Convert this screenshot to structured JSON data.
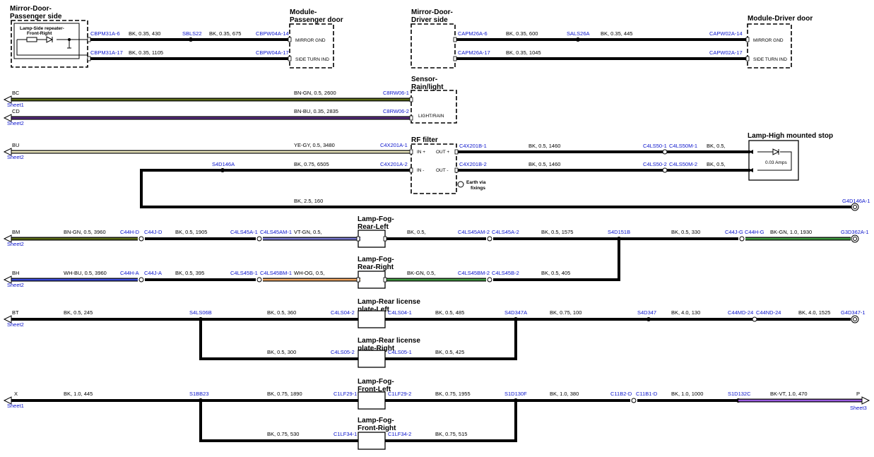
{
  "sheets": {
    "s1": "Sheet1",
    "s2": "Sheet2",
    "s3": "Sheet3"
  },
  "off_page": {
    "bc": "BC",
    "cd": "CD",
    "bu": "BU",
    "bm": "BM",
    "bh": "BH",
    "bt": "BT",
    "x": "X",
    "p": "P"
  },
  "components": {
    "mirror_pass": {
      "line1": "Mirror-Door-",
      "line2": "Passenger side"
    },
    "side_repeater": {
      "line1": "Lamp-Side repeater-",
      "line2": "Front-Right"
    },
    "module_pass": {
      "line1": "Module-",
      "line2": "Passenger door",
      "pin1": "MIRROR GND",
      "pin2": "SIDE TURN IND"
    },
    "mirror_drv": {
      "line1": "Mirror-Door-",
      "line2": "Driver side"
    },
    "module_drv": {
      "title": "Module-Driver door",
      "pin1": "MIRROR GND",
      "pin2": "SIDE TURN IND"
    },
    "sensor_rain": {
      "line1": "Sensor-",
      "line2": "Rain/light",
      "pin": "LIGHT/RAIN"
    },
    "rf_filter": {
      "title": "RF filter",
      "in_plus": "IN +",
      "out_plus": "OUT +",
      "in_minus": "IN -",
      "out_minus": "OUT -",
      "earth1": "Earth via",
      "earth2": "fixings"
    },
    "hms_lamp": {
      "title": "Lamp-High mounted stop",
      "amps": "0.03 Amps"
    },
    "fog_rl": {
      "line1": "Lamp-Fog-",
      "line2": "Rear-Left"
    },
    "fog_rr": {
      "line1": "Lamp-Fog-",
      "line2": "Rear-Right"
    },
    "plate_l": {
      "line1": "Lamp-Rear license",
      "line2": "plate-Left"
    },
    "plate_r": {
      "line1": "Lamp-Rear license",
      "line2": "plate-Right"
    },
    "fog_fl": {
      "line1": "Lamp-Fog-",
      "line2": "Front-Left"
    },
    "fog_fr": {
      "line1": "Lamp-Fog-",
      "line2": "Front-Right"
    }
  },
  "connectors": {
    "cbpm31a_6": "CBPM31A-6",
    "sbls22": "SBLS22",
    "cbpw04a_14": "CBPW04A-14",
    "cbpm31a_17": "CBPM31A-17",
    "cbpw04a_17": "CBPW04A-17",
    "capm26a_6": "CAPM26A-6",
    "sals26a": "SALS26A",
    "capw02a_14": "CAPW02A-14",
    "capm26a_17": "CAPM26A-17",
    "capw02a_17": "CAPW02A-17",
    "c8rw06_1": "C8RW06-1",
    "c8rw06_2": "C8RW06-2",
    "c4x201a_1": "C4X201A-1",
    "c4x201a_2": "C4X201A-2",
    "s4d146a": "S4D146A",
    "c4x201b_1": "C4X201B-1",
    "c4ls50_1": "C4LS50-1",
    "c4ls50m_1": "C4LS50M-1",
    "c4x201b_2": "C4X201B-2",
    "c4ls50_2": "C4LS50-2",
    "c4ls50m_2": "C4LS50M-2",
    "g4d146a_1": "G4D146A-1",
    "c44h_d": "C44H-D",
    "c44j_d": "C44J-D",
    "c4ls45a_1": "C4LS45A-1",
    "c4ls45am_1": "C4LS45AM-1",
    "c4ls45am_2": "C4LS45AM-2",
    "c4ls45a_2": "C4LS45A-2",
    "s4d151b": "S4D151B",
    "c44j_g": "C44J-G",
    "c44h_g": "C44H-G",
    "g3d362a_1": "G3D362A-1",
    "c44h_a": "C44H-A",
    "c44j_a": "C44J-A",
    "c4ls45b_1": "C4LS45B-1",
    "c4ls45bm_1": "C4LS45BM-1",
    "c4ls45bm_2": "C4LS45BM-2",
    "c4ls45b_2": "C4LS45B-2",
    "s4ls06b": "S4LS06B",
    "c4ls04_2": "C4LS04-2",
    "c4ls04_1": "C4LS04-1",
    "s4d347a": "S4D347A",
    "s4d347": "S4D347",
    "c44md_24": "C44MD-24",
    "c44nd_24": "C44ND-24",
    "g4d347_1": "G4D347-1",
    "c4ls05_2": "C4LS05-2",
    "c4ls05_1": "C4LS05-1",
    "s1bb23": "S1BB23",
    "c1lf29_1": "C1LF29-1",
    "c1lf29_2": "C1LF29-2",
    "s1d130f": "S1D130F",
    "c11b2_d": "C11B2-D",
    "c11b1_d": "C11B1-D",
    "s1d132c": "S1D132C",
    "c1lf34_1": "C1LF34-1",
    "c1lf34_2": "C1LF34-2"
  },
  "wires": {
    "w1a": "BK, 0.35, 430",
    "w1b": "BK, 0.35, 675",
    "w2": "BK, 0.35, 1105",
    "w3a": "BK, 0.35, 600",
    "w3b": "BK, 0.35, 445",
    "w4": "BK, 0.35, 1045",
    "w5": "BN-GN, 0.5, 2600",
    "w6": "BN-BU, 0.35, 2835",
    "w7": "YE-GY, 0.5, 3480",
    "w8": "BK, 0.75, 6505",
    "w9": "BK, 2.5, 160",
    "w10": "BK, 0.5, 1460",
    "w10b": "BK, 0.5,",
    "w11": "BK, 0.5, 1460",
    "w11b": "BK, 0.5,",
    "w12a": "BN-GN, 0.5, 3960",
    "w12b": "BK, 0.5, 1905",
    "w12c": "VT-GN, 0.5,",
    "w13a": "BK, 0.5,",
    "w13b": "BK, 0.5, 1575",
    "w13c": "BK, 0.5, 330",
    "w13d": "BK-GN, 1.0, 1930",
    "w14a": "WH-BU, 0.5, 3960",
    "w14b": "BK, 0.5, 395",
    "w14c": "WH-OG, 0.5,",
    "w15a": "BK-GN, 0.5,",
    "w15b": "BK, 0.5, 405",
    "w16a": "BK, 0.5, 245",
    "w16b": "BK, 0.5, 360",
    "w16c": "BK, 0.5, 485",
    "w16d": "BK, 0.75, 100",
    "w16e": "BK, 4.0, 130",
    "w16f": "BK, 4.0, 1525",
    "w17a": "BK, 0.5, 300",
    "w17b": "BK, 0.5, 425",
    "w18a": "BK, 1.0, 445",
    "w18b": "BK, 0.75, 1890",
    "w18c": "BK, 0.75, 1955",
    "w18d": "BK, 1.0, 380",
    "w18e": "BK, 1.0, 1000",
    "w18f": "BK-VT, 1.0, 470",
    "w19a": "BK, 0.75, 530",
    "w19b": "BK, 0.75, 515"
  },
  "colors": {
    "wire_black": "#000000",
    "connector_blue": "#0b14cc",
    "bn_gn": "#5b6b16",
    "bn_bu": "#5a2d82",
    "ye_gy": "#f1ecc2",
    "vt_gn": "#7a7ad0",
    "wh_bu": "#3b4bd8",
    "wh_og": "#f2a660",
    "bk_gn": "#3f9a3f",
    "bk_vt": "#9a5ce0"
  }
}
